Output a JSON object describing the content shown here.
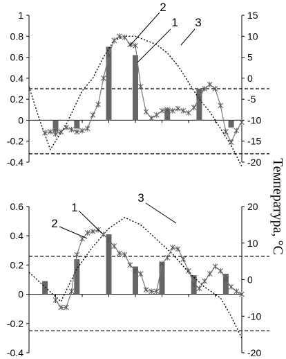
{
  "right_axis_label": "Температура, °С",
  "chart_data": [
    {
      "type": "bar",
      "ylim_left": [
        -0.4,
        1
      ],
      "ylim_right": [
        -20,
        15
      ],
      "left_ticks": [
        "1",
        "0.8",
        "0.6",
        "0.4",
        "0.2",
        "0",
        "-0.2",
        "-0.4"
      ],
      "right_ticks": [
        "15",
        "10",
        "5",
        "0",
        "-5",
        "-10",
        "-15",
        "-20"
      ],
      "bars": [
        {
          "x": 5,
          "value": -0.11
        },
        {
          "x": 9,
          "value": -0.08
        },
        {
          "x": 15,
          "value": 0.7
        },
        {
          "x": 20,
          "value": 0.62
        },
        {
          "x": 26,
          "value": 0.11
        },
        {
          "x": 32,
          "value": 0.3
        },
        {
          "x": 38,
          "value": -0.07
        }
      ],
      "series": [
        {
          "name": "1",
          "style": "line-asterisk",
          "x": [
            3,
            4,
            5,
            6,
            7,
            8,
            9,
            10,
            11,
            12,
            13,
            14,
            15,
            16,
            17,
            18,
            19,
            20,
            21,
            22,
            23,
            24,
            25,
            26,
            27,
            28,
            29,
            30,
            31,
            32,
            33,
            34,
            35,
            36,
            37,
            38,
            39,
            40
          ],
          "values": [
            -0.12,
            -0.11,
            -0.13,
            -0.11,
            -0.07,
            -0.09,
            -0.11,
            -0.1,
            -0.08,
            0.05,
            0.15,
            0.4,
            0.62,
            0.76,
            0.8,
            0.79,
            0.72,
            0.71,
            0.32,
            0.08,
            0.02,
            0.05,
            0.09,
            0.1,
            0.09,
            0.11,
            0.09,
            0.07,
            0.12,
            0.21,
            0.3,
            0.34,
            0.3,
            0.14,
            -0.11,
            -0.21,
            -0.1,
            -0.02
          ]
        },
        {
          "name": "2",
          "style": "bar"
        },
        {
          "name": "3",
          "style": "dotted",
          "x": [
            0,
            2,
            4,
            7,
            10,
            12,
            14,
            16,
            18,
            20,
            22,
            24,
            26,
            28,
            30,
            32,
            34,
            36,
            38,
            40
          ],
          "right_axis_values": [
            -2,
            -10,
            -17,
            -11,
            -3,
            0,
            5,
            9,
            10,
            10,
            9,
            8,
            6,
            3,
            -1,
            -5,
            -8,
            -12,
            -16,
            -21
          ]
        }
      ],
      "thresholds_left": [
        0.3,
        -0.32
      ],
      "annotations": [
        "2",
        "1",
        "3"
      ]
    },
    {
      "type": "bar",
      "ylim_left": [
        -0.4,
        0.6
      ],
      "ylim_right": [
        -20,
        20
      ],
      "left_ticks": [
        "0.6",
        "0.4",
        "0.2",
        "0",
        "-0.2",
        "-0.4"
      ],
      "right_ticks": [
        "20",
        "10",
        "0",
        "-10",
        "-20"
      ],
      "bars": [
        {
          "x": 3,
          "value": 0.09
        },
        {
          "x": 9,
          "value": 0.24
        },
        {
          "x": 15,
          "value": 0.41
        },
        {
          "x": 20,
          "value": 0.19
        },
        {
          "x": 25,
          "value": 0.22
        },
        {
          "x": 31,
          "value": 0.13
        },
        {
          "x": 37,
          "value": 0.14
        }
      ],
      "series": [
        {
          "name": "1",
          "style": "line-asterisk",
          "x": [
            5,
            6,
            7,
            8,
            9,
            10,
            11,
            12,
            13,
            14,
            15,
            16,
            17,
            18,
            19,
            20,
            21,
            22,
            23,
            24,
            25,
            26,
            27,
            28,
            29,
            30,
            31,
            32,
            33,
            34,
            35,
            36,
            37,
            38,
            39,
            40
          ],
          "values": [
            -0.04,
            -0.09,
            -0.09,
            0.02,
            0.27,
            0.38,
            0.42,
            0.43,
            0.44,
            0.41,
            0.37,
            0.33,
            0.28,
            0.27,
            0.2,
            0.16,
            0.14,
            0.03,
            0.02,
            0.02,
            0.21,
            0.25,
            0.32,
            0.31,
            0.24,
            0.16,
            0.07,
            0.04,
            0.09,
            0.14,
            0.19,
            0.16,
            0.1,
            0.05,
            0.02,
            0.0
          ]
        },
        {
          "name": "2",
          "style": "bar"
        },
        {
          "name": "3",
          "style": "dotted",
          "x": [
            0,
            3,
            6,
            9,
            12,
            15,
            18,
            21,
            24,
            27,
            30,
            33,
            36,
            38,
            40
          ],
          "right_axis_values": [
            2,
            -2,
            -6,
            3,
            9,
            14,
            17,
            15,
            11,
            7,
            2,
            -2,
            -5,
            -10,
            -16
          ]
        }
      ],
      "thresholds_left": [
        0.26,
        -0.25
      ],
      "annotations": [
        "1",
        "2",
        "3"
      ]
    }
  ]
}
